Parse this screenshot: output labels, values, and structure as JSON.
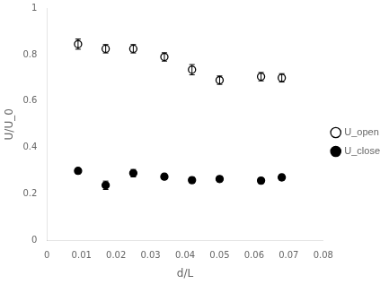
{
  "chart_data": {
    "type": "scatter",
    "x_label": "d/L",
    "y_label": "U/U_0",
    "x": [
      0.009,
      0.017,
      0.025,
      0.034,
      0.042,
      0.05,
      0.062,
      0.068
    ],
    "series": [
      {
        "name": "U_open",
        "color": "black",
        "marker": "circle_open",
        "values": [
          0.845,
          0.825,
          0.825,
          0.79,
          0.735,
          0.69,
          0.705,
          0.7
        ],
        "yerr": [
          0.022,
          0.018,
          0.018,
          0.018,
          0.022,
          0.018,
          0.018,
          0.018
        ]
      },
      {
        "name": "U_close",
        "color": "black",
        "marker": "circle",
        "values": [
          0.3,
          0.238,
          0.29,
          0.275,
          0.26,
          0.265,
          0.258,
          0.272
        ],
        "yerr": [
          0.012,
          0.018,
          0.016,
          0.012,
          0.012,
          0.012,
          0.012,
          0.012
        ]
      }
    ],
    "xlim": [
      0,
      0.08
    ],
    "ylim": [
      0,
      1
    ],
    "xticks": [
      0,
      0.01,
      0.02,
      0.03,
      0.04,
      0.05,
      0.06,
      0.07,
      0.08
    ],
    "yticks": [
      0,
      0.2,
      0.4,
      0.6,
      0.8,
      1
    ],
    "grid": false,
    "legend": "right"
  }
}
